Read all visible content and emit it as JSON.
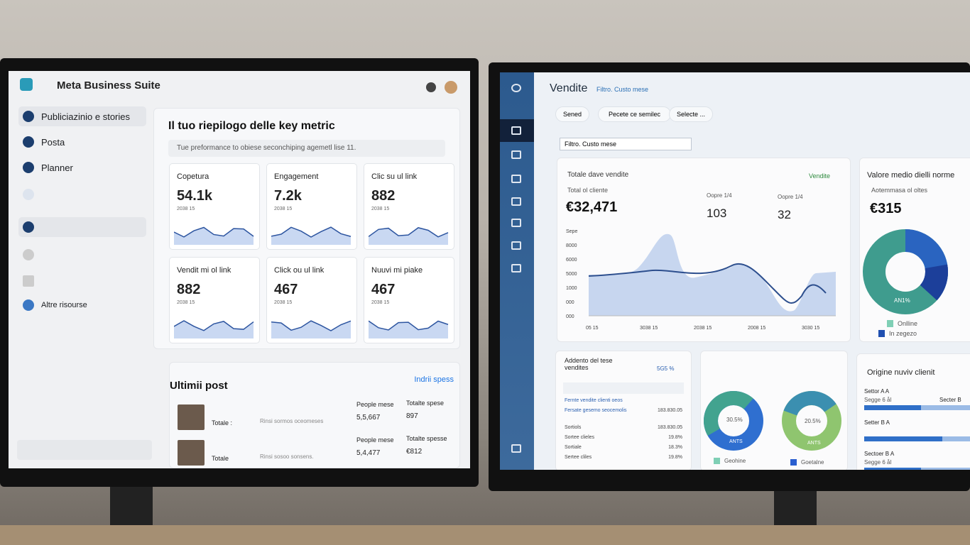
{
  "left": {
    "app_title": "Meta Business Suite",
    "nav": [
      "Publiciazinio e stories",
      "Posta",
      "Planner",
      "Altre risourse"
    ],
    "heading": "Il tuo riepilogo delle key metric",
    "subheading": "Tue preformance to obiese seconchiping agemetl lise 11.",
    "cards": [
      {
        "label": "Copetura",
        "value": "54.1k",
        "note": "2038 15"
      },
      {
        "label": "Engagement",
        "value": "7.2k",
        "note": "2038 15"
      },
      {
        "label": "Clic su ul link",
        "value": "882",
        "note": "2038 15"
      },
      {
        "label": "Vendit mi ol link",
        "value": "882",
        "note": "2038 15"
      },
      {
        "label": "Click ou ul link",
        "value": "467",
        "note": "2038 15"
      },
      {
        "label": "Nuuvi mi piake",
        "value": "467",
        "note": "2038 15"
      }
    ],
    "posts_title": "Ultimii post",
    "posts_link": "Indrii spess",
    "posts": [
      {
        "label": "Totale :",
        "text": "Rinsi sormos oceomeses",
        "col1_head": "People mese",
        "col1": "5,5,667",
        "col2_head": "Totalte spese",
        "col2": "897"
      },
      {
        "label": "Totale",
        "text": "Rinsi sosoo sonsens.",
        "col1_head": "People mese",
        "col1": "5,4,477",
        "col2_head": "Totalte spesse",
        "col2": "€812"
      }
    ]
  },
  "right": {
    "title": "Vendite",
    "title_filter": "Filtro. Custo mese",
    "tabs": [
      "Sened",
      "Pecete ce semilec",
      "Selecte ..."
    ],
    "search": "Filtro. Custo mese",
    "sales": {
      "title": "Totale dave vendite",
      "badge": "Vendite",
      "sub": "Total ol cliente",
      "total": "€32,471",
      "kpis": [
        {
          "label": "Oopre 1/4",
          "value": "103"
        },
        {
          "label": "Oopre 1/4",
          "value": "32"
        }
      ],
      "y_labels": [
        "Sepe",
        "8000",
        "6000",
        "5000",
        "1000",
        "000",
        "000"
      ],
      "x_labels": [
        "05 15",
        "3038 15",
        "2038 15",
        "2008 15",
        "3030 15"
      ]
    },
    "avg": {
      "title": "Valore medio dielli norme",
      "sub": "Aotemmasa ol oltes",
      "value": "€315",
      "pie_label": "AN1%",
      "legend": [
        "Onlline",
        "In zegezo"
      ]
    },
    "detail": {
      "title": "Addento del tese vendites",
      "badge": "5G5 %",
      "rows": [
        {
          "label": "Fernte vendite clienti oeos",
          "value": ""
        },
        {
          "label": "Fersate gesemo seocemolis",
          "value": "183.830.05"
        },
        {
          "label": "Sortiols",
          "value": "183.830.05"
        },
        {
          "label": "Sortee clieles",
          "value": "19.8%"
        },
        {
          "label": "Sortiale",
          "value": "18.3%"
        },
        {
          "label": "Sertee cliles",
          "value": "19.8%"
        }
      ]
    },
    "donuts": {
      "labels": [
        "30.5%",
        "20.5%"
      ],
      "sub": [
        "ANTS",
        "ANTS"
      ],
      "legend": [
        "Geohine",
        "Goetalne"
      ]
    },
    "origin": {
      "title": "Origine nuviv clienit",
      "rows": [
        [
          "Settor A A",
          "Segge 6 ål",
          "Secter B"
        ],
        [
          "Setter B A",
          ""
        ],
        [
          "Sectoer B A",
          "Segge 6 ål"
        ]
      ]
    }
  }
}
